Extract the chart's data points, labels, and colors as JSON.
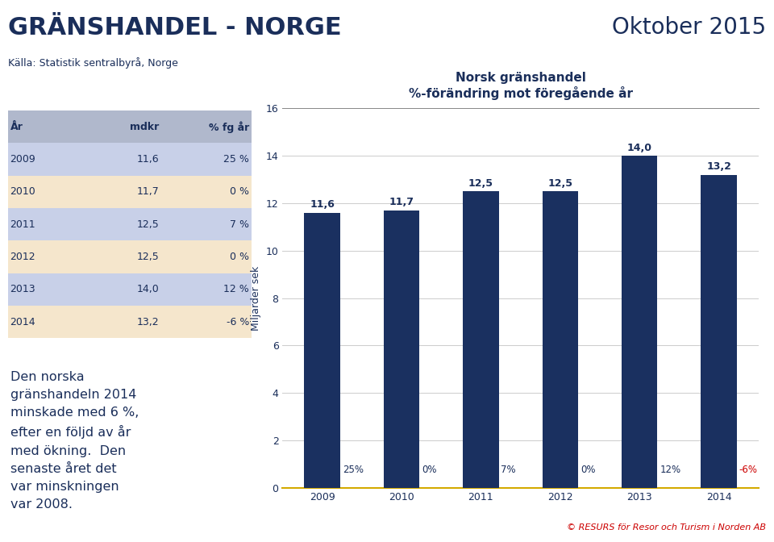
{
  "title_left": "GRÄNSHANDEL - NORGE",
  "subtitle_left": "Källa: Statistik sentralbyrå, Norge",
  "title_right": "Oktober 2015",
  "chart_title_line1": "Norsk gränshandel",
  "chart_title_line2": "%-förändring mot föregående år",
  "ylabel": "Miljarder sek",
  "years": [
    "2009",
    "2010",
    "2011",
    "2012",
    "2013",
    "2014"
  ],
  "values": [
    11.6,
    11.7,
    12.5,
    12.5,
    14.0,
    13.2
  ],
  "value_labels": [
    "11,6",
    "11,7",
    "12,5",
    "12,5",
    "14,0",
    "13,2"
  ],
  "pct_labels": [
    "25%",
    "0%",
    "7%",
    "0%",
    "12%",
    "-6%"
  ],
  "pct_label_colors": [
    "#1a2e5a",
    "#1a2e5a",
    "#1a2e5a",
    "#1a2e5a",
    "#1a2e5a",
    "#cc0000"
  ],
  "bar_color": "#1a3060",
  "ylim": [
    0,
    16
  ],
  "yticks": [
    0,
    2,
    4,
    6,
    8,
    10,
    12,
    14,
    16
  ],
  "table_years": [
    "2009",
    "2010",
    "2011",
    "2012",
    "2013",
    "2014"
  ],
  "table_mdkr": [
    "11,6",
    "11,7",
    "12,5",
    "12,5",
    "14,0",
    "13,2"
  ],
  "table_pct": [
    "25 %",
    "0 %",
    "7 %",
    "0 %",
    "12 %",
    "-6 %"
  ],
  "table_header": [
    "År",
    "mdkr",
    "% fg år"
  ],
  "body_text": "Den norska\ngränshandeln 2014\nminskade med 6 %,\nefter en följd av år\nmed ökning.  Den\nsenaste året det\nvar minskningen\nvar 2008.",
  "footer_text": "© RESURS för Resor och Turism i Norden AB",
  "dark_navy": "#1a2e5a",
  "row_colors_even": "#c8d0e8",
  "row_colors_odd": "#f5e6cc",
  "header_bg": "#b0b8cc",
  "bottom_line_color": "#d4aa00",
  "grid_color": "#cccccc",
  "top_line_color": "#888888"
}
